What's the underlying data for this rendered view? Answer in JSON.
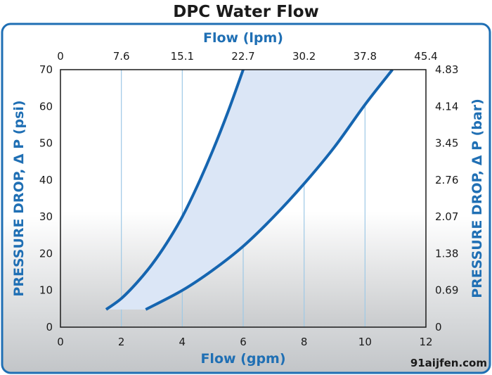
{
  "title": "DPC Water Flow",
  "watermark": "91aijfen.com",
  "colors": {
    "border": "#1f6fb4",
    "curve": "#1565b0",
    "band_fill": "#dbe6f6",
    "grid": "#9ec9e6",
    "axis_title": "#1f6fb4"
  },
  "chart_data": {
    "type": "line",
    "title": "DPC Water Flow",
    "xlabel": "Flow (gpm)",
    "x2label": "Flow (lpm)",
    "ylabel": "PRESSURE DROP, Δ P (psi)",
    "y2label": "PRESSURE DROP, Δ P (bar)",
    "xlim": [
      0,
      12
    ],
    "ylim": [
      0,
      70
    ],
    "x_ticks": [
      "0",
      "2",
      "4",
      "6",
      "8",
      "10",
      "12"
    ],
    "x2_ticks": [
      "0",
      "7.6",
      "15.1",
      "22.7",
      "30.2",
      "37.8",
      "45.4"
    ],
    "y_ticks": [
      "0",
      "10",
      "20",
      "30",
      "40",
      "50",
      "60",
      "70"
    ],
    "y2_ticks": [
      "0",
      "0.69",
      "1.38",
      "2.07",
      "2.76",
      "3.45",
      "4.14",
      "4.83"
    ],
    "grid": true,
    "series": [
      {
        "x": [
          1.5,
          2.0,
          2.5,
          3.0,
          3.5,
          4.0,
          4.5,
          5.0,
          5.5,
          6.0
        ],
        "y": [
          4.8,
          7.8,
          12.0,
          17.0,
          23.0,
          30.0,
          38.5,
          48.0,
          58.5,
          70.0
        ]
      },
      {
        "x": [
          2.8,
          4.0,
          5.0,
          6.0,
          7.0,
          8.0,
          9.0,
          10.0,
          10.9
        ],
        "y": [
          4.8,
          10.0,
          15.5,
          22.0,
          30.0,
          39.0,
          49.0,
          60.5,
          70.0
        ]
      }
    ],
    "shaded_band": true
  }
}
